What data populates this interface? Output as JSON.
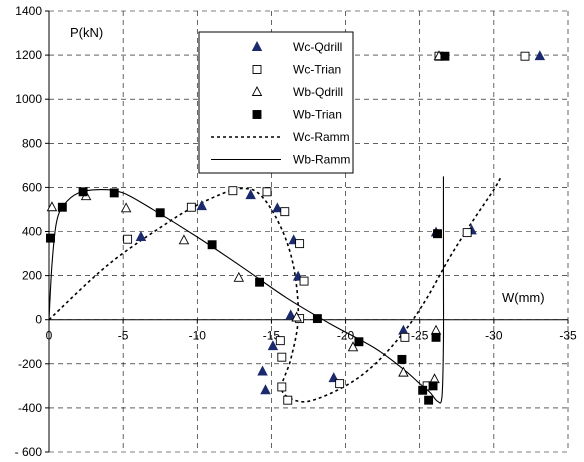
{
  "chart_data": {
    "type": "scatter",
    "title": "",
    "xlabel": "W(mm)",
    "ylabel": "P(kN)",
    "xlim": [
      0,
      -35
    ],
    "ylim": [
      -600,
      1400
    ],
    "x_ticks": [
      0,
      -5,
      -10,
      -15,
      -20,
      -25,
      -30,
      -35
    ],
    "y_ticks": [
      -600,
      -400,
      -200,
      0,
      200,
      400,
      600,
      800,
      1000,
      1200,
      1400
    ],
    "x_tick_labels": [
      "0",
      "-5",
      "-10",
      "-15",
      "-20",
      "-25",
      "-30",
      "-35"
    ],
    "y_tick_labels": [
      "- 600",
      "-400",
      "-200",
      "0",
      "200",
      "400",
      "600",
      "800",
      "1000",
      "1200",
      "1400"
    ],
    "grid": "dashed",
    "legend_position": "top-center",
    "colors": {
      "marker_dark": "#1a2a6c",
      "line": "#000000"
    },
    "series": [
      {
        "name": "Wc-Qdrill",
        "marker": "triangle-filled",
        "points": [
          [
            -6.2,
            375
          ],
          [
            -10.3,
            515
          ],
          [
            -13.6,
            565
          ],
          [
            -15.4,
            505
          ],
          [
            -16.5,
            360
          ],
          [
            -16.8,
            195
          ],
          [
            -16.3,
            20
          ],
          [
            -15.1,
            -120
          ],
          [
            -14.4,
            -235
          ],
          [
            -14.6,
            -320
          ],
          [
            -19.2,
            -265
          ],
          [
            -23.9,
            -50
          ],
          [
            -26.1,
            395
          ],
          [
            -28.5,
            405
          ],
          [
            -33.1,
            1195
          ]
        ]
      },
      {
        "name": "Wc-Trian",
        "marker": "square-open",
        "points": [
          [
            -5.3,
            365
          ],
          [
            -9.6,
            510
          ],
          [
            -12.4,
            585
          ],
          [
            -14.7,
            580
          ],
          [
            -15.9,
            490
          ],
          [
            -16.9,
            345
          ],
          [
            -17.2,
            175
          ],
          [
            -16.9,
            5
          ],
          [
            -15.6,
            -95
          ],
          [
            -15.7,
            -170
          ],
          [
            -15.7,
            -305
          ],
          [
            -16.1,
            -365
          ],
          [
            -19.6,
            -290
          ],
          [
            -24.0,
            -80
          ],
          [
            -25.5,
            -300
          ],
          [
            -26.3,
            1195
          ],
          [
            -28.2,
            395
          ],
          [
            -32.1,
            1195
          ]
        ]
      },
      {
        "name": "Wb-Qdrill",
        "marker": "triangle-open",
        "points": [
          [
            -0.2,
            510
          ],
          [
            -2.5,
            560
          ],
          [
            -5.2,
            505
          ],
          [
            -9.1,
            360
          ],
          [
            -12.8,
            190
          ],
          [
            -16.7,
            10
          ],
          [
            -20.5,
            -125
          ],
          [
            -23.9,
            -240
          ],
          [
            -26.0,
            -270
          ],
          [
            -26.1,
            -50
          ],
          [
            -26.3,
            1195
          ]
        ]
      },
      {
        "name": "Wb-Trian",
        "marker": "square-filled",
        "points": [
          [
            -0.1,
            370
          ],
          [
            -0.9,
            510
          ],
          [
            -2.3,
            580
          ],
          [
            -4.4,
            575
          ],
          [
            -7.5,
            485
          ],
          [
            -11.0,
            340
          ],
          [
            -14.2,
            170
          ],
          [
            -18.1,
            5
          ],
          [
            -20.9,
            -100
          ],
          [
            -23.8,
            -180
          ],
          [
            -25.2,
            -320
          ],
          [
            -25.6,
            -365
          ],
          [
            -25.9,
            -300
          ],
          [
            -26.1,
            -80
          ],
          [
            -26.2,
            390
          ],
          [
            -26.7,
            1195
          ]
        ]
      },
      {
        "name": "Wc-Ramm",
        "line": "dotted",
        "points": [
          [
            0,
            0
          ],
          [
            -4,
            250
          ],
          [
            -8,
            440
          ],
          [
            -10,
            520
          ],
          [
            -12,
            580
          ],
          [
            -13,
            595
          ],
          [
            -14,
            580
          ],
          [
            -15,
            500
          ],
          [
            -16,
            360
          ],
          [
            -16.6,
            200
          ],
          [
            -16.8,
            0
          ],
          [
            -16.3,
            -180
          ],
          [
            -15.7,
            -300
          ],
          [
            -16.1,
            -350
          ],
          [
            -17.5,
            -370
          ],
          [
            -20,
            -300
          ],
          [
            -22,
            -200
          ],
          [
            -24,
            -50
          ],
          [
            -25.5,
            100
          ],
          [
            -27,
            280
          ],
          [
            -28.5,
            440
          ],
          [
            -30,
            590
          ],
          [
            -30.5,
            650
          ]
        ]
      },
      {
        "name": "Wb-Ramm",
        "line": "solid",
        "points": [
          [
            0,
            0
          ],
          [
            -0.2,
            250
          ],
          [
            -0.5,
            440
          ],
          [
            -1,
            520
          ],
          [
            -2,
            575
          ],
          [
            -3.5,
            590
          ],
          [
            -5,
            575
          ],
          [
            -7,
            500
          ],
          [
            -10,
            375
          ],
          [
            -13,
            240
          ],
          [
            -16,
            100
          ],
          [
            -19,
            -20
          ],
          [
            -22,
            -130
          ],
          [
            -24,
            -230
          ],
          [
            -25,
            -290
          ],
          [
            -25.7,
            -330
          ],
          [
            -26.2,
            -370
          ],
          [
            -26.5,
            -350
          ],
          [
            -26.6,
            -100
          ],
          [
            -26.6,
            200
          ],
          [
            -26.6,
            500
          ],
          [
            -26.6,
            650
          ]
        ]
      }
    ]
  }
}
